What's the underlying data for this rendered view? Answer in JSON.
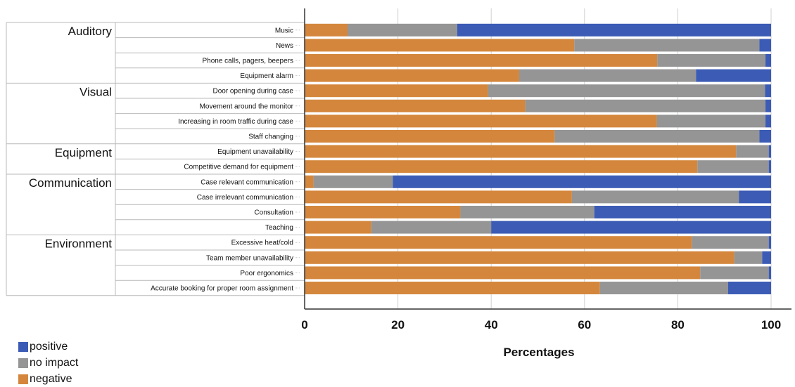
{
  "chart_data": {
    "type": "bar",
    "orientation": "horizontal",
    "stacked": true,
    "xlabel": "Percentages",
    "xlim": [
      0,
      100
    ],
    "xticks": [
      0,
      20,
      40,
      60,
      80,
      100
    ],
    "grid": true,
    "legend_position": "bottom-left",
    "groups": [
      {
        "name": "Auditory",
        "categories": [
          "Music",
          "News",
          "Phone calls, pagers, beepers",
          "Equipment alarm"
        ]
      },
      {
        "name": "Visual",
        "categories": [
          "Door opening during case",
          "Movement around the monitor",
          "Increasing in room traffic during case",
          "Staff changing"
        ]
      },
      {
        "name": "Equipment",
        "categories": [
          "Equipment unavailability",
          "Competitive demand for equipment"
        ]
      },
      {
        "name": "Communication",
        "categories": [
          "Case relevant communication",
          "Case irrelevant communication",
          "Consultation",
          "Teaching"
        ]
      },
      {
        "name": "Environment",
        "categories": [
          "Excessive heat/cold",
          "Team member unavailability",
          "Poor ergonomics",
          "Accurate booking for proper room assignment"
        ]
      }
    ],
    "categories": [
      "Music",
      "News",
      "Phone calls, pagers, beepers",
      "Equipment alarm",
      "Door opening during case",
      "Movement around the monitor",
      "Increasing in room traffic during case",
      "Staff changing",
      "Equipment unavailability",
      "Competitive demand for equipment",
      "Case relevant communication",
      "Case irrelevant communication",
      "Consultation",
      "Teaching",
      "Excessive heat/cold",
      "Team member unavailability",
      "Poor ergonomics",
      "Accurate booking for proper room assignment"
    ],
    "series": [
      {
        "name": "negative",
        "color": "#D4873C",
        "values": [
          9.2,
          57.8,
          75.6,
          46.0,
          39.3,
          47.3,
          75.5,
          53.6,
          92.5,
          84.2,
          1.9,
          57.3,
          33.4,
          14.3,
          83.0,
          92.1,
          84.8,
          63.3
        ]
      },
      {
        "name": "no impact",
        "color": "#959595",
        "values": [
          23.5,
          39.7,
          23.2,
          37.9,
          59.4,
          51.5,
          23.3,
          43.9,
          7.0,
          15.3,
          17.0,
          35.8,
          28.7,
          25.7,
          16.5,
          6.0,
          14.7,
          27.5
        ]
      },
      {
        "name": "positive",
        "color": "#3B5BB5",
        "values": [
          67.3,
          2.5,
          1.2,
          16.1,
          1.3,
          1.2,
          1.2,
          2.5,
          0.5,
          0.5,
          81.1,
          6.9,
          37.9,
          60.0,
          0.5,
          1.9,
          0.5,
          9.2
        ]
      }
    ],
    "legend": [
      {
        "label": "positive",
        "color": "#3B5BB5"
      },
      {
        "label": "no impact",
        "color": "#959595"
      },
      {
        "label": "negative",
        "color": "#D4873C"
      }
    ]
  }
}
